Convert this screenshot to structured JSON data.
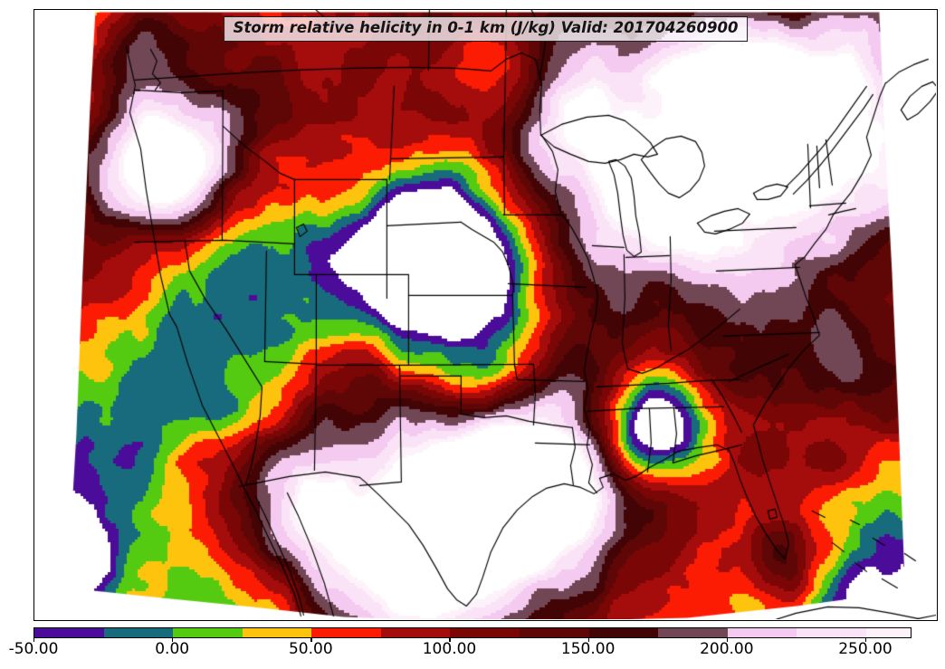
{
  "title": {
    "text": "Storm relative helicity in 0-1 km (J/kg) Valid: 201704260900"
  },
  "colorbar": {
    "range": [
      -50,
      266
    ],
    "ticks": [
      {
        "value": -50,
        "label": "-50.00"
      },
      {
        "value": 0,
        "label": "0.00"
      },
      {
        "value": 50,
        "label": "50.00"
      },
      {
        "value": 100,
        "label": "100.00"
      },
      {
        "value": 150,
        "label": "150.00"
      },
      {
        "value": 200,
        "label": "200.00"
      },
      {
        "value": 250,
        "label": "250.00"
      }
    ],
    "segments": [
      {
        "from": -50,
        "to": -25,
        "color": "#4B0C99"
      },
      {
        "from": -25,
        "to": 0,
        "color": "#186B7D"
      },
      {
        "from": 0,
        "to": 25,
        "color": "#54CB11"
      },
      {
        "from": 25,
        "to": 50,
        "color": "#FEC30D"
      },
      {
        "from": 50,
        "to": 75,
        "color": "#FB1C03"
      },
      {
        "from": 75,
        "to": 100,
        "color": "#A50C0C"
      },
      {
        "from": 100,
        "to": 125,
        "color": "#7B0606"
      },
      {
        "from": 125,
        "to": 150,
        "color": "#5F0606"
      },
      {
        "from": 150,
        "to": 175,
        "color": "#420404"
      },
      {
        "from": 175,
        "to": 200,
        "color": "#714755"
      },
      {
        "from": 200,
        "to": 225,
        "color": "#F5CAF1"
      },
      {
        "from": 225,
        "to": 250,
        "color": "#FAE3F6"
      },
      {
        "from": 250,
        "to": 266,
        "color": "#FDF2FA"
      }
    ],
    "out_of_range_color": "#FFFFFF",
    "line_color": "#000000"
  }
}
